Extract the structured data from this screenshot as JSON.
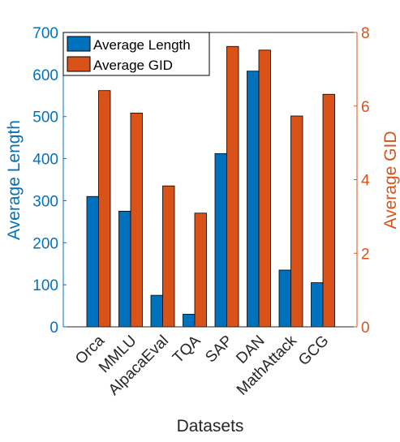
{
  "chart_data": {
    "type": "bar",
    "xlabel": "Datasets",
    "categories": [
      "Orca",
      "MMLU",
      "AlpacaEval",
      "TQA",
      "SAP",
      "DAN",
      "MathAttack",
      "GCG"
    ],
    "left_axis": {
      "label": "Average Length",
      "ylim": [
        0,
        700
      ],
      "ticks": [
        "0",
        "100",
        "200",
        "300",
        "400",
        "500",
        "600",
        "700"
      ],
      "color": "#0072BD"
    },
    "right_axis": {
      "label": "Average GID",
      "ylim": [
        0,
        8
      ],
      "ticks": [
        "0",
        "2",
        "4",
        "6",
        "8"
      ],
      "color": "#D95319"
    },
    "series": [
      {
        "name": "Average Length",
        "axis": "left",
        "color": "#0072BD",
        "values": [
          310,
          275,
          75,
          30,
          412,
          608,
          135,
          105
        ]
      },
      {
        "name": "Average GID",
        "axis": "right",
        "color": "#D95319",
        "values": [
          6.42,
          5.81,
          3.83,
          3.09,
          7.62,
          7.52,
          5.73,
          6.32
        ]
      }
    ],
    "legend": {
      "position": "top-left",
      "entries": [
        "Average Length",
        "Average GID"
      ]
    },
    "grid": false
  }
}
